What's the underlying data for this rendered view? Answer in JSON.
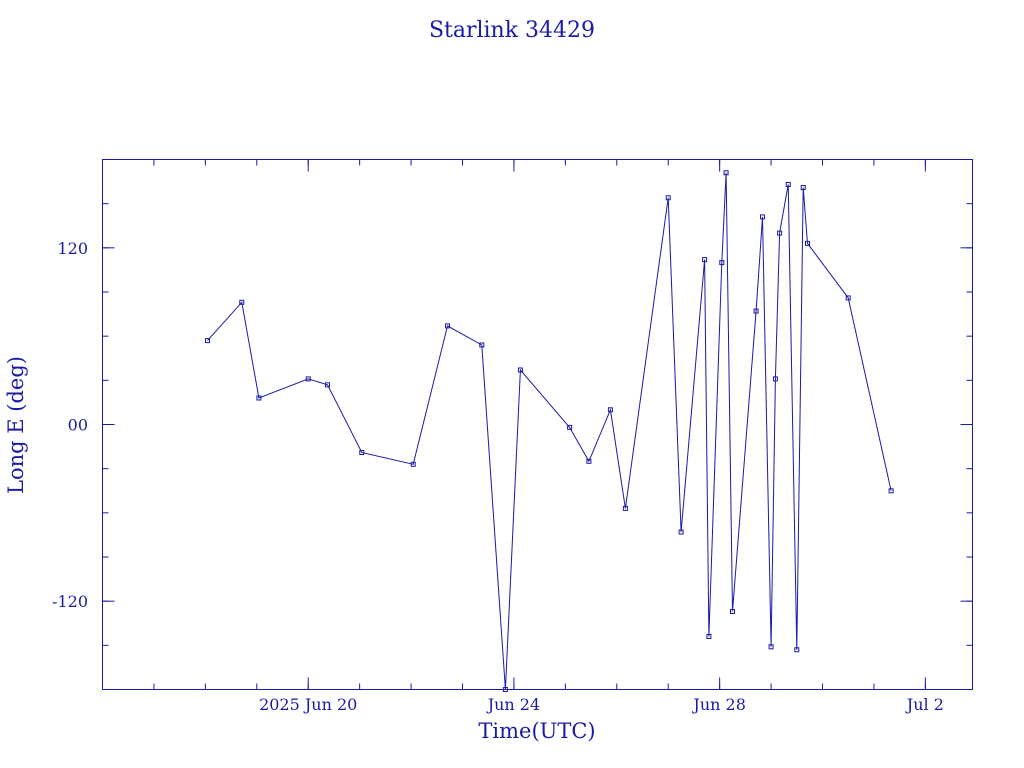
{
  "chart_data": {
    "type": "scatter",
    "title": "Starlink 34429",
    "xlabel": "Time(UTC)",
    "ylabel": "Long E (deg)",
    "xlim": [
      "2025-06-16T00:00",
      "2025-07-02T22:00"
    ],
    "ylim": [
      -180,
      180
    ],
    "x_ticks": [
      {
        "x": "2025-06-20T00:00",
        "label": "2025 Jun 20"
      },
      {
        "x": "2025-06-24T00:00",
        "label": "Jun 24"
      },
      {
        "x": "2025-06-28T00:00",
        "label": "Jun 28"
      },
      {
        "x": "2025-07-02T00:00",
        "label": "Jul  2"
      }
    ],
    "y_ticks": [
      {
        "y": 120,
        "label": "120"
      },
      {
        "y": 0,
        "label": "00"
      },
      {
        "y": -120,
        "label": "-120"
      }
    ],
    "grid": false,
    "legend": "none",
    "series": [
      {
        "points": [
          [
            "2025-06-18T01:00",
            57
          ],
          [
            "2025-06-18T17:00",
            83
          ],
          [
            "2025-06-19T01:00",
            18
          ],
          [
            "2025-06-20T00:00",
            31
          ],
          [
            "2025-06-20T09:00",
            27
          ],
          [
            "2025-06-21T01:00",
            -19
          ],
          [
            "2025-06-22T01:00",
            -27
          ],
          [
            "2025-06-22T17:00",
            67
          ],
          [
            "2025-06-23T09:00",
            54
          ],
          [
            "2025-06-23T20:00",
            -180
          ],
          [
            "2025-06-24T03:00",
            37
          ],
          [
            "2025-06-25T02:00",
            -2
          ],
          [
            "2025-06-25T11:00",
            -25
          ],
          [
            "2025-06-25T21:00",
            10
          ],
          [
            "2025-06-26T04:00",
            -57
          ],
          [
            "2025-06-27T00:00",
            154
          ],
          [
            "2025-06-27T06:00",
            -73
          ],
          [
            "2025-06-27T17:00",
            112
          ],
          [
            "2025-06-27T19:00",
            -144
          ],
          [
            "2025-06-28T01:00",
            110
          ],
          [
            "2025-06-28T03:00",
            171
          ],
          [
            "2025-06-28T06:00",
            -127
          ],
          [
            "2025-06-28T17:00",
            77
          ],
          [
            "2025-06-28T20:00",
            141
          ],
          [
            "2025-06-29T00:00",
            -151
          ],
          [
            "2025-06-29T02:00",
            31
          ],
          [
            "2025-06-29T04:00",
            130
          ],
          [
            "2025-06-29T08:00",
            163
          ],
          [
            "2025-06-29T12:00",
            -153
          ],
          [
            "2025-06-29T15:00",
            161
          ],
          [
            "2025-06-29T17:00",
            123
          ],
          [
            "2025-06-30T12:00",
            86
          ],
          [
            "2025-07-01T08:00",
            -45
          ]
        ]
      }
    ]
  }
}
